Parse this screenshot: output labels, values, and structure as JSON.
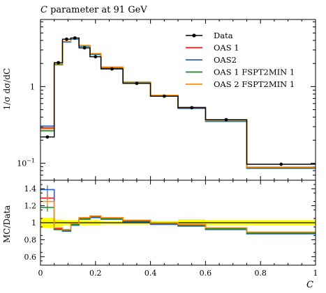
{
  "chart_data": {
    "type": "line",
    "title_var": "C",
    "title_rest": " parameter at 91 GeV",
    "ylabel": "1/σ dσ/dC",
    "ratio_ylabel": "MC/Data",
    "xlabel": "C",
    "xlim": [
      0,
      1
    ],
    "ylim": [
      0.06,
      7.5
    ],
    "yscale": "log",
    "ratio_ylim": [
      0.5,
      1.5
    ],
    "x_ticks": [
      "0",
      "0.2",
      "0.4",
      "0.6",
      "0.8",
      "1"
    ],
    "x_tick_values": [
      0,
      0.2,
      0.4,
      0.6,
      0.8,
      1
    ],
    "main_y_ticks": [
      {
        "value": 1,
        "base": "1",
        "exp": ""
      },
      {
        "value": 0.1,
        "base": "10",
        "exp": "−1"
      }
    ],
    "ratio_y_ticks": [
      "0.6",
      "0.8",
      "1",
      "1.2",
      "1.4"
    ],
    "ratio_y_tick_values": [
      0.6,
      0.8,
      1.0,
      1.2,
      1.4
    ],
    "bin_edges": [
      0,
      0.05,
      0.08,
      0.11,
      0.14,
      0.18,
      0.22,
      0.3,
      0.4,
      0.5,
      0.6,
      0.75,
      1.0
    ],
    "data": {
      "name": "Data",
      "color": "#000000",
      "x": [
        0.025,
        0.065,
        0.095,
        0.125,
        0.16,
        0.2,
        0.26,
        0.35,
        0.45,
        0.55,
        0.675,
        0.875
      ],
      "values": [
        0.22,
        2.05,
        4.15,
        4.3,
        3.2,
        2.45,
        1.7,
        1.1,
        0.75,
        0.53,
        0.37,
        0.097
      ]
    },
    "series": [
      {
        "name": "OAS 1",
        "color": "#e41a1c",
        "values": [
          0.29,
          1.95,
          3.85,
          4.2,
          3.4,
          2.65,
          1.78,
          1.13,
          0.76,
          0.53,
          0.355,
          0.087
        ],
        "ratio": [
          1.29,
          0.93,
          0.91,
          0.98,
          1.05,
          1.07,
          1.05,
          1.02,
          0.99,
          0.97,
          0.93,
          0.88
        ]
      },
      {
        "name": "OAS2",
        "color": "#2b5fd9",
        "values": [
          0.305,
          1.93,
          3.8,
          4.15,
          3.35,
          2.62,
          1.75,
          1.12,
          0.75,
          0.52,
          0.35,
          0.086
        ],
        "ratio": [
          1.39,
          0.92,
          0.9,
          0.97,
          1.04,
          1.06,
          1.04,
          1.01,
          0.98,
          0.96,
          0.92,
          0.87
        ]
      },
      {
        "name": "OAS 1 FSPT2MIN 1",
        "color": "#1a8a1a",
        "values": [
          0.265,
          1.95,
          3.88,
          4.22,
          3.42,
          2.66,
          1.79,
          1.14,
          0.765,
          0.535,
          0.357,
          0.088
        ],
        "ratio": [
          1.18,
          0.92,
          0.91,
          0.98,
          1.05,
          1.07,
          1.05,
          1.02,
          0.99,
          0.97,
          0.93,
          0.88
        ]
      },
      {
        "name": "OAS 2 FSPT2MIN 1",
        "color": "#ff8c00",
        "values": [
          0.28,
          1.98,
          3.9,
          4.25,
          3.45,
          2.7,
          1.8,
          1.15,
          0.77,
          0.54,
          0.36,
          0.089
        ],
        "ratio": [
          1.25,
          0.94,
          0.92,
          0.99,
          1.06,
          1.08,
          1.06,
          1.03,
          1.0,
          0.98,
          0.94,
          0.89
        ]
      }
    ],
    "data_band": [
      0.06,
      0.04,
      0.03,
      0.03,
      0.03,
      0.03,
      0.02,
      0.02,
      0.02,
      0.04,
      0.03,
      0.03
    ],
    "band_color": "#ffff00",
    "legend_position": "top-right"
  }
}
